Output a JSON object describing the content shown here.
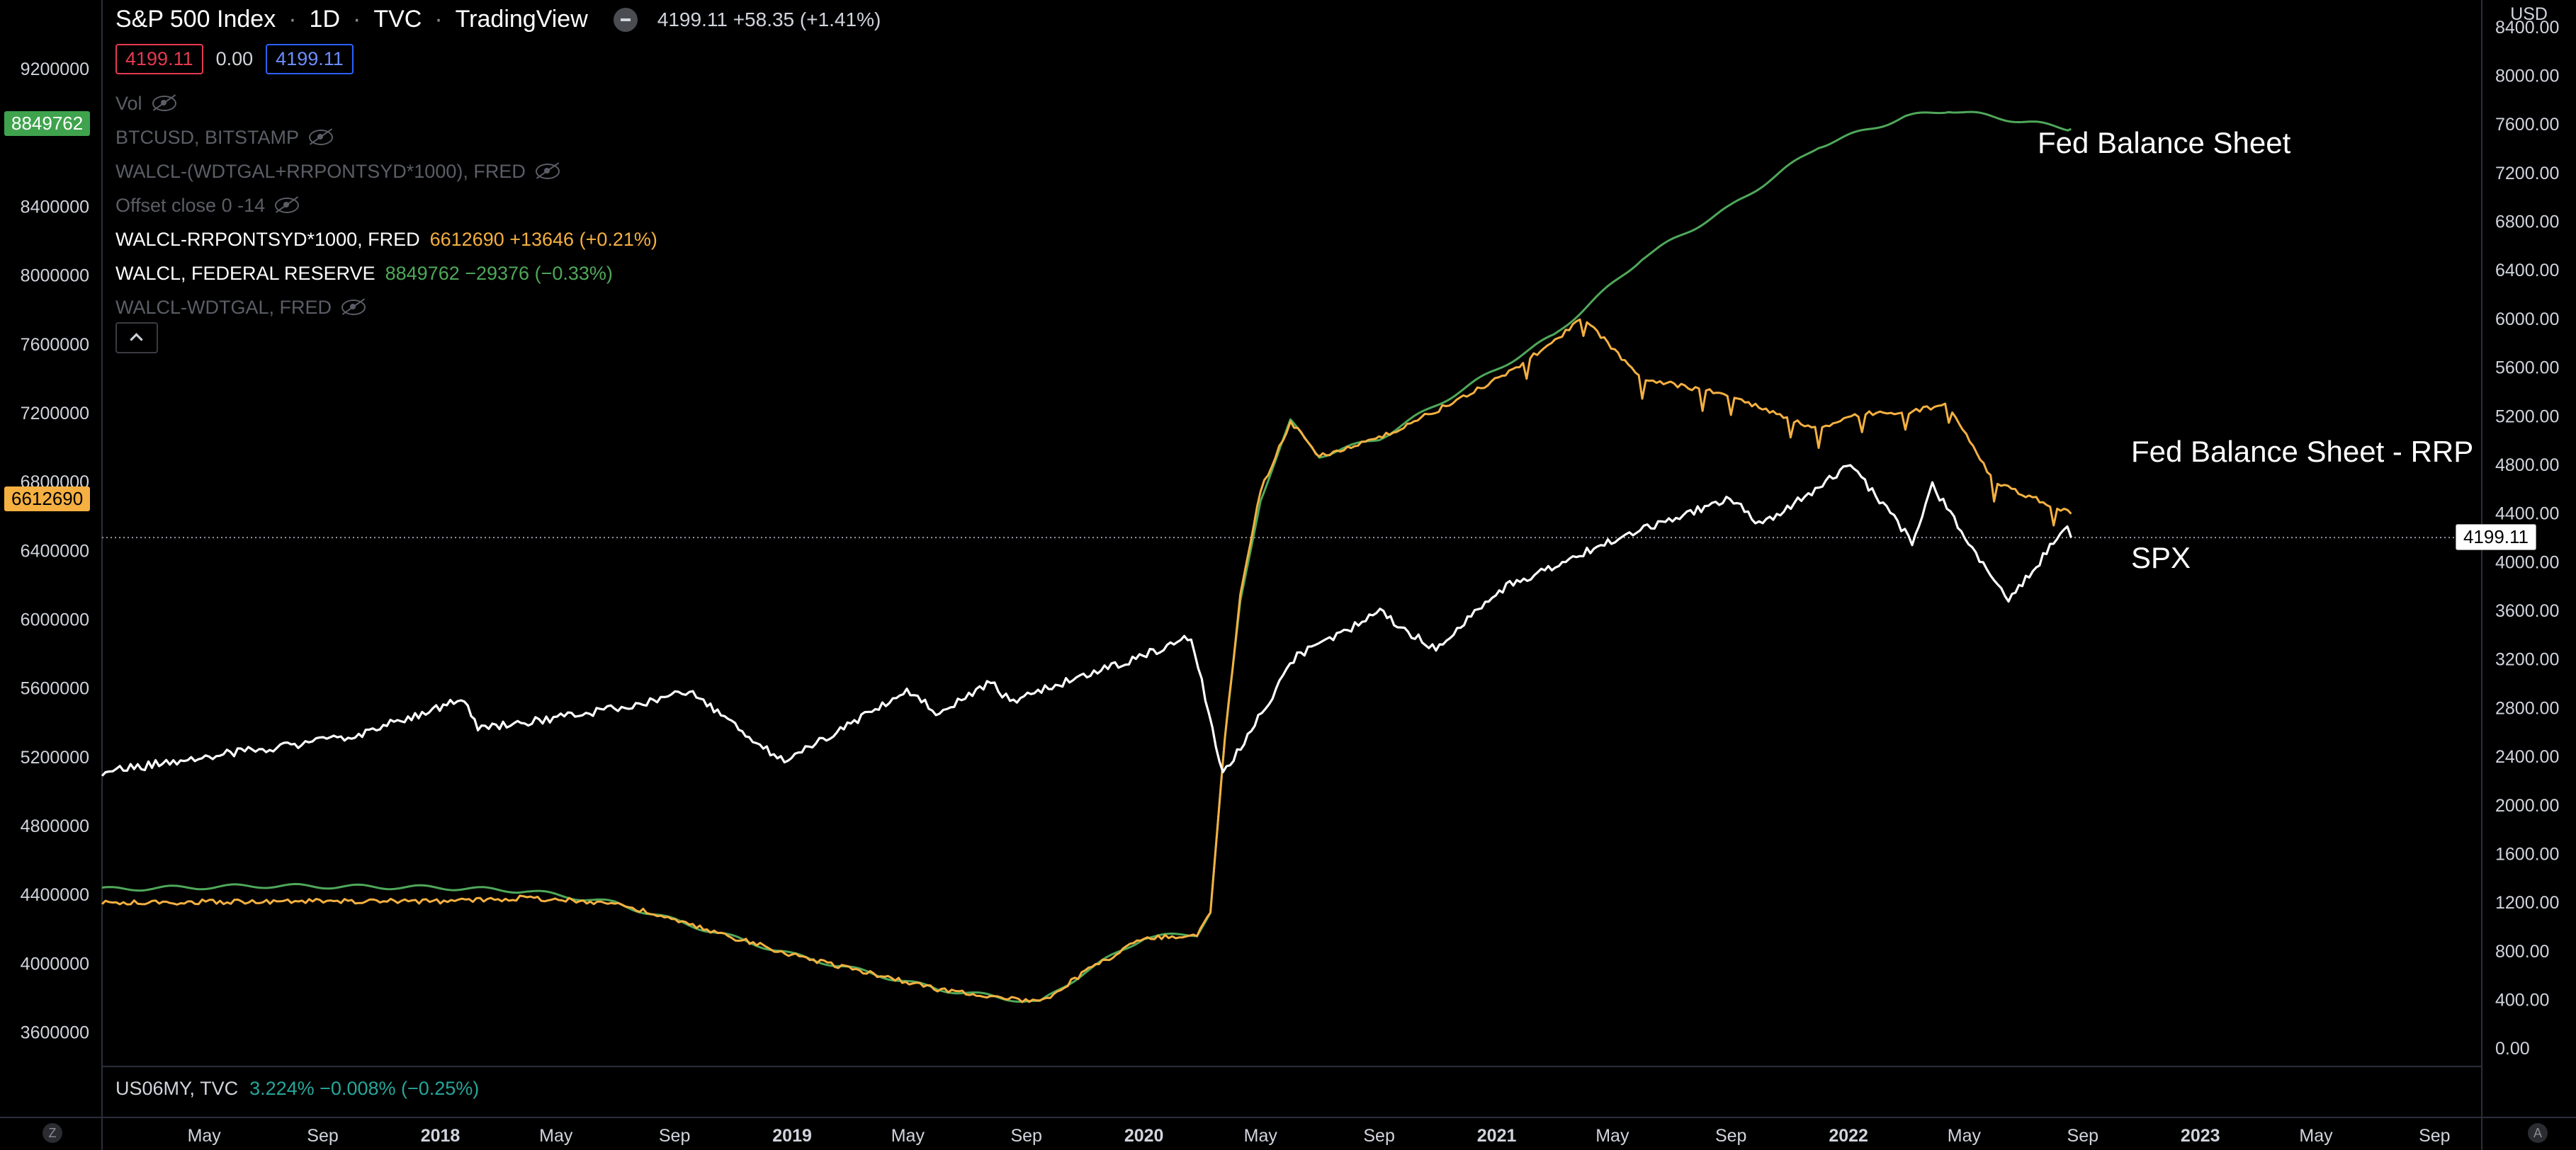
{
  "header": {
    "symbol": "S&P 500 Index",
    "interval": "1D",
    "exchange": "TVC",
    "source": "TradingView",
    "price_line": "4199.11 +58.35 (+1.41%)",
    "sell_price": "4199.11",
    "spread": "0.00",
    "buy_price": "4199.11"
  },
  "legend": [
    {
      "label": "Vol",
      "hidden": true
    },
    {
      "label": "BTCUSD, BITSTAMP",
      "hidden": true
    },
    {
      "label": "WALCL-(WDTGAL+RRPONTSYD*1000), FRED",
      "hidden": true
    },
    {
      "label": "Offset close 0 -14",
      "hidden": true
    },
    {
      "label": "WALCL-RRPONTSYD*1000, FRED",
      "value": "6612690 +13646 (+0.21%)",
      "hidden": false
    },
    {
      "label": "WALCL, FEDERAL RESERVE",
      "value": "8849762 −29376 (−0.33%)",
      "hidden": false
    },
    {
      "label": "WALCL-WDTGAL, FRED",
      "hidden": true
    }
  ],
  "sub_pane": {
    "label": "US06MY, TVC",
    "value": "3.224% −0.008% (−0.25%)"
  },
  "axis_badges": {
    "left_green": "8849762",
    "left_orange": "6612690",
    "right_white": "4199.11",
    "currency": "USD"
  },
  "corner_buttons": {
    "left": "Z",
    "right": "A"
  },
  "annotations": {
    "fed": "Fed Balance Sheet",
    "rrp": "Fed Balance Sheet - RRP",
    "spx": "SPX"
  },
  "colors": {
    "fed": "#4fa85a",
    "rrp": "#f5b041",
    "spx": "#ffffff",
    "background": "#000000"
  },
  "chart_data": {
    "type": "line",
    "left_axis": {
      "ticks": [
        3600000,
        4000000,
        4400000,
        4800000,
        5200000,
        5600000,
        6000000,
        6400000,
        6800000,
        7200000,
        7600000,
        8000000,
        8400000,
        9200000
      ],
      "range": [
        3400000,
        9600000
      ]
    },
    "right_axis": {
      "ticks": [
        0,
        400,
        800,
        1200,
        1600,
        2000,
        2400,
        2800,
        3200,
        3600,
        4000,
        4400,
        4800,
        5200,
        5600,
        6000,
        6400,
        6800,
        7200,
        7600,
        8000,
        8400
      ],
      "tick_labels": [
        "0.00",
        "400.00",
        "800.00",
        "1200.00",
        "1600.00",
        "2000.00",
        "2400.00",
        "2800.00",
        "3200.00",
        "3600.00",
        "4000.00",
        "4400.00",
        "4800.00",
        "5200.00",
        "5600.00",
        "6000.00",
        "6400.00",
        "6800.00",
        "7200.00",
        "7600.00",
        "8000.00",
        "8400.00"
      ],
      "range": [
        -150,
        8620
      ]
    },
    "x_axis": {
      "range": [
        "2017-01-15",
        "2023-10-20"
      ],
      "ticks": [
        {
          "date": "2017-05-01",
          "label": "May",
          "bold": false
        },
        {
          "date": "2017-09-01",
          "label": "Sep",
          "bold": false
        },
        {
          "date": "2018-01-01",
          "label": "2018",
          "bold": true
        },
        {
          "date": "2018-05-01",
          "label": "May",
          "bold": false
        },
        {
          "date": "2018-09-01",
          "label": "Sep",
          "bold": false
        },
        {
          "date": "2019-01-01",
          "label": "2019",
          "bold": true
        },
        {
          "date": "2019-05-01",
          "label": "May",
          "bold": false
        },
        {
          "date": "2019-09-01",
          "label": "Sep",
          "bold": false
        },
        {
          "date": "2020-01-01",
          "label": "2020",
          "bold": true
        },
        {
          "date": "2020-05-01",
          "label": "May",
          "bold": false
        },
        {
          "date": "2020-09-01",
          "label": "Sep",
          "bold": false
        },
        {
          "date": "2021-01-01",
          "label": "2021",
          "bold": true
        },
        {
          "date": "2021-05-01",
          "label": "May",
          "bold": false
        },
        {
          "date": "2021-09-01",
          "label": "Sep",
          "bold": false
        },
        {
          "date": "2022-01-01",
          "label": "2022",
          "bold": true
        },
        {
          "date": "2022-05-01",
          "label": "May",
          "bold": false
        },
        {
          "date": "2022-09-01",
          "label": "Sep",
          "bold": false
        },
        {
          "date": "2023-01-01",
          "label": "2023",
          "bold": true
        },
        {
          "date": "2023-05-01",
          "label": "May",
          "bold": false
        },
        {
          "date": "2023-09-01",
          "label": "Sep",
          "bold": false
        }
      ]
    },
    "last_price_line": 4199.11,
    "series": [
      {
        "name": "Fed Balance Sheet",
        "axis": "left",
        "color": "#4fa85a",
        "points": [
          [
            "2017-01-15",
            4430000
          ],
          [
            "2017-07-01",
            4450000
          ],
          [
            "2018-01-01",
            4440000
          ],
          [
            "2018-04-01",
            4420000
          ],
          [
            "2018-07-01",
            4350000
          ],
          [
            "2019-01-01",
            4050000
          ],
          [
            "2019-06-01",
            3850000
          ],
          [
            "2019-09-15",
            3770000
          ],
          [
            "2019-11-01",
            3950000
          ],
          [
            "2020-01-01",
            4150000
          ],
          [
            "2020-02-25",
            4170000
          ],
          [
            "2020-03-10",
            4300000
          ],
          [
            "2020-03-25",
            5300000
          ],
          [
            "2020-04-10",
            6100000
          ],
          [
            "2020-05-01",
            6700000
          ],
          [
            "2020-06-01",
            7150000
          ],
          [
            "2020-07-01",
            6950000
          ],
          [
            "2020-09-01",
            7050000
          ],
          [
            "2020-12-01",
            7350000
          ],
          [
            "2021-03-01",
            7650000
          ],
          [
            "2021-06-01",
            8100000
          ],
          [
            "2021-09-01",
            8400000
          ],
          [
            "2021-12-01",
            8750000
          ],
          [
            "2022-03-01",
            8920000
          ],
          [
            "2022-04-15",
            8960000
          ],
          [
            "2022-06-01",
            8920000
          ],
          [
            "2022-08-20",
            8849762
          ]
        ]
      },
      {
        "name": "Fed Balance Sheet - RRP",
        "axis": "left",
        "color": "#f5b041",
        "points": [
          [
            "2017-01-15",
            4350000
          ],
          [
            "2017-07-01",
            4360000
          ],
          [
            "2018-01-01",
            4360000
          ],
          [
            "2018-04-01",
            4380000
          ],
          [
            "2018-07-01",
            4350000
          ],
          [
            "2019-01-01",
            4050000
          ],
          [
            "2019-06-01",
            3850000
          ],
          [
            "2019-09-15",
            3770000
          ],
          [
            "2019-11-01",
            3950000
          ],
          [
            "2020-01-01",
            4150000
          ],
          [
            "2020-02-25",
            4160000
          ],
          [
            "2020-03-10",
            4300000
          ],
          [
            "2020-03-25",
            5300000
          ],
          [
            "2020-04-10",
            6150000
          ],
          [
            "2020-05-01",
            6750000
          ],
          [
            "2020-06-01",
            7150000
          ],
          [
            "2020-07-01",
            6950000
          ],
          [
            "2020-09-01",
            7050000
          ],
          [
            "2020-12-01",
            7300000
          ],
          [
            "2021-02-01",
            7500000
          ],
          [
            "2021-04-01",
            7750000
          ],
          [
            "2021-06-01",
            7400000
          ],
          [
            "2021-09-01",
            7300000
          ],
          [
            "2021-12-01",
            7100000
          ],
          [
            "2022-01-15",
            7200000
          ],
          [
            "2022-03-01",
            7200000
          ],
          [
            "2022-04-15",
            7250000
          ],
          [
            "2022-06-01",
            6800000
          ],
          [
            "2022-08-20",
            6612690
          ]
        ]
      },
      {
        "name": "SPX",
        "axis": "right",
        "color": "#ffffff",
        "points": [
          [
            "2017-01-15",
            2270
          ],
          [
            "2017-06-01",
            2430
          ],
          [
            "2017-10-01",
            2560
          ],
          [
            "2018-01-26",
            2870
          ],
          [
            "2018-02-09",
            2620
          ],
          [
            "2018-06-01",
            2750
          ],
          [
            "2018-09-20",
            2930
          ],
          [
            "2018-12-24",
            2350
          ],
          [
            "2019-04-30",
            2945
          ],
          [
            "2019-06-03",
            2740
          ],
          [
            "2019-07-26",
            3020
          ],
          [
            "2019-08-15",
            2850
          ],
          [
            "2019-12-31",
            3230
          ],
          [
            "2020-02-19",
            3386
          ],
          [
            "2020-03-23",
            2237
          ],
          [
            "2020-06-08",
            3230
          ],
          [
            "2020-09-02",
            3580
          ],
          [
            "2020-10-30",
            3270
          ],
          [
            "2020-12-31",
            3756
          ],
          [
            "2021-04-30",
            4180
          ],
          [
            "2021-08-31",
            4520
          ],
          [
            "2021-10-04",
            4300
          ],
          [
            "2022-01-03",
            4796
          ],
          [
            "2022-03-08",
            4170
          ],
          [
            "2022-03-29",
            4630
          ],
          [
            "2022-06-16",
            3666
          ],
          [
            "2022-08-16",
            4305
          ],
          [
            "2022-08-20",
            4199.11
          ]
        ]
      }
    ]
  }
}
